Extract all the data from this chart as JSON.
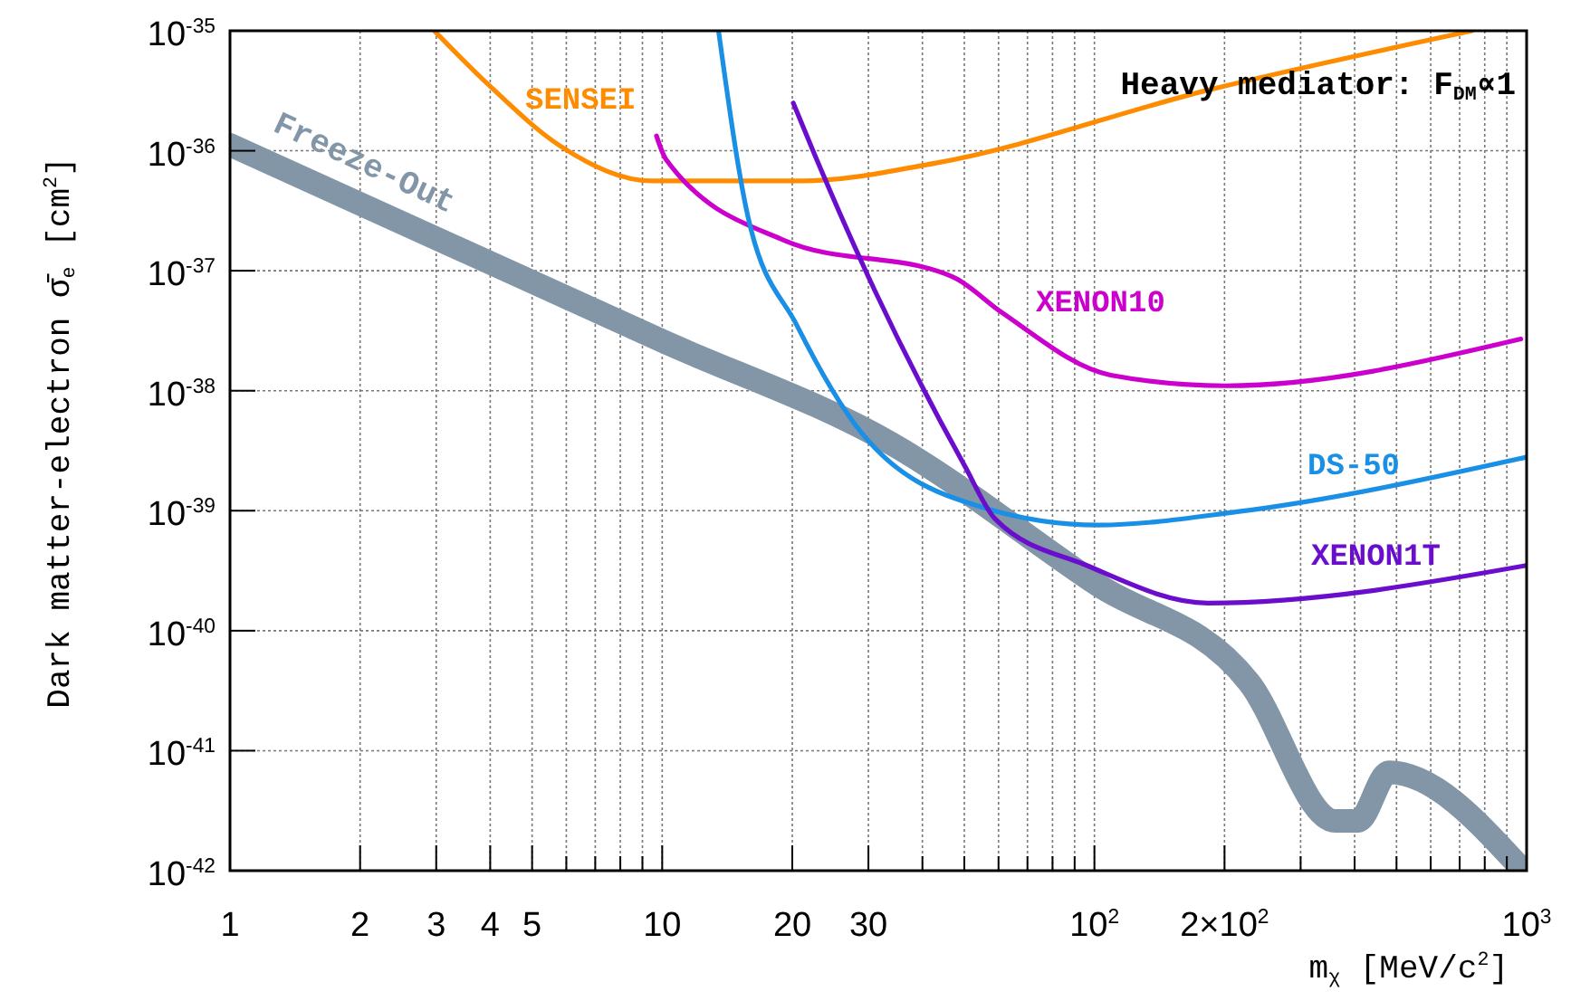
{
  "chart_data": {
    "type": "line",
    "annotations": [
      "Heavy mediator: F$_{DM}$∝1"
    ],
    "xlabel": "m$_{χ}$  [MeV/c$^{2}$]",
    "ylabel": "Dark matter-electron  σ̄$_{e}$  [cm$^{2}$]",
    "log": "xy",
    "grid": true,
    "legend": false,
    "marker": "none",
    "line_style": "solid",
    "xlim": [
      1,
      1000
    ],
    "ylim": [
      1e-42,
      1e-35
    ],
    "xticks": [
      1,
      2,
      3,
      4,
      5,
      {
        "value": 6,
        "label": null
      },
      {
        "value": 7,
        "label": null
      },
      {
        "value": 8,
        "label": null
      },
      {
        "value": 9,
        "label": null
      },
      10,
      20,
      30,
      {
        "value": 40,
        "label": null
      },
      {
        "value": 50,
        "label": null
      },
      {
        "value": 60,
        "label": null
      },
      {
        "value": 70,
        "label": null
      },
      {
        "value": 80,
        "label": null
      },
      {
        "value": 90,
        "label": null
      },
      {
        "value": 100,
        "label": "10$^{2}$"
      },
      {
        "value": 200,
        "label": "2×10$^{2}$"
      },
      {
        "value": 300,
        "label": null
      },
      {
        "value": 400,
        "label": null
      },
      {
        "value": 500,
        "label": null
      },
      {
        "value": 600,
        "label": null
      },
      {
        "value": 700,
        "label": null
      },
      {
        "value": 800,
        "label": null
      },
      {
        "value": 900,
        "label": null
      },
      {
        "value": 1000,
        "label": "10$^{3}$"
      }
    ],
    "yticks": [
      {
        "value": 1e-42,
        "label": "10$^{-42}$"
      },
      {
        "value": 1e-41,
        "label": "10$^{-41}$"
      },
      {
        "value": 1e-40,
        "label": "10$^{-40}$"
      },
      {
        "value": 1e-39,
        "label": "10$^{-39}$"
      },
      {
        "value": 1e-38,
        "label": "10$^{-38}$"
      },
      {
        "value": 1e-37,
        "label": "10$^{-37}$"
      },
      {
        "value": 1e-36,
        "label": "10$^{-36}$"
      },
      {
        "value": 1e-35,
        "label": "10$^{-35}$"
      }
    ],
    "series": [
      {
        "name": "SENSEI",
        "color": "#ff8c00",
        "x": [
          2.97,
          3.98,
          5.8,
          9.5,
          21,
          43,
          183,
          748
        ],
        "values": [
          1e-35,
          3.5e-36,
          1.1e-36,
          5.6e-37,
          5.6e-37,
          7.9e-37,
          3.2e-36,
          1e-35
        ]
      },
      {
        "name": "XENON10",
        "color": "#cc00cc",
        "x": [
          9.7,
          10.2,
          19.1,
          47,
          61,
          109,
          201,
          970
        ],
        "values": [
          1.33e-36,
          8.5e-37,
          1.8e-37,
          8.9e-38,
          4.5e-38,
          1.35e-38,
          1.1e-38,
          2.7e-38
        ]
      },
      {
        "name": "DS-50",
        "color": "#1a8fe6",
        "x": [
          13.5,
          15.8,
          20.5,
          29,
          55,
          102,
          214,
          1000
        ],
        "values": [
          1e-35,
          2.8e-37,
          3.5e-38,
          4.4e-39,
          1.07e-39,
          7.6e-40,
          9.8e-40,
          2.8e-39
        ]
      },
      {
        "name": "XENON1T",
        "color": "#6a0dcc",
        "x": [
          20.1,
          22.5,
          31,
          50,
          59,
          96,
          183,
          1000
        ],
        "values": [
          2.5e-36,
          9.4e-37,
          6.9e-38,
          2.4e-39,
          8.5e-40,
          3.5e-40,
          1.7e-40,
          3.5e-40
        ]
      },
      {
        "name": "Freeze-Out",
        "color": "#8396a8",
        "x": [
          1,
          10,
          34,
          102,
          228,
          360,
          407,
          480,
          970
        ],
        "values": [
          1.12e-36,
          2.6e-38,
          3.6e-39,
          2.4e-40,
          3.7e-41,
          2.6e-42,
          2.6e-42,
          6.6e-42,
          1.05e-42
        ]
      }
    ]
  }
}
